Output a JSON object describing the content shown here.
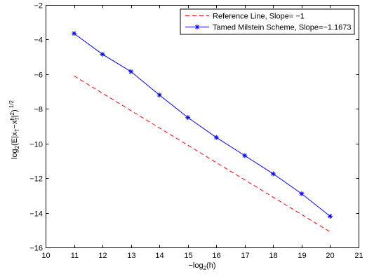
{
  "chart_data": {
    "type": "line",
    "title": "",
    "xlabel": "−log₂(h)",
    "ylabel": "log₂(E|xₜ−xʰₜ|²)¹ᐟ²",
    "xlim": [
      10,
      21
    ],
    "ylim": [
      -16,
      -2
    ],
    "xticks": [
      10,
      11,
      12,
      13,
      14,
      15,
      16,
      17,
      18,
      19,
      20,
      21
    ],
    "yticks": [
      -16,
      -14,
      -12,
      -10,
      -8,
      -6,
      -4,
      -2
    ],
    "xtick_labels": [
      "10",
      "11",
      "12",
      "13",
      "14",
      "15",
      "16",
      "17",
      "18",
      "19",
      "20",
      "21"
    ],
    "ytick_labels": [
      "−16",
      "−14",
      "−12",
      "−10",
      "−8",
      "−6",
      "−4",
      "−2"
    ],
    "grid": false,
    "legend_position": "top-right",
    "series": [
      {
        "name": "Reference Line, Slope= −1",
        "color": "#ff0000",
        "style": "dashed",
        "marker": "none",
        "x": [
          11,
          20
        ],
        "y": [
          -6.1,
          -15.1
        ]
      },
      {
        "name": "Tamed Milstein Scheme, Slope=−1.1673",
        "color": "#0000ff",
        "style": "solid",
        "marker": "asterisk",
        "x": [
          11,
          12,
          13,
          14,
          15,
          16,
          17,
          18,
          19,
          20
        ],
        "y": [
          -3.65,
          -4.85,
          -5.85,
          -7.2,
          -8.5,
          -9.65,
          -10.7,
          -11.75,
          -12.9,
          -14.2
        ]
      }
    ]
  }
}
